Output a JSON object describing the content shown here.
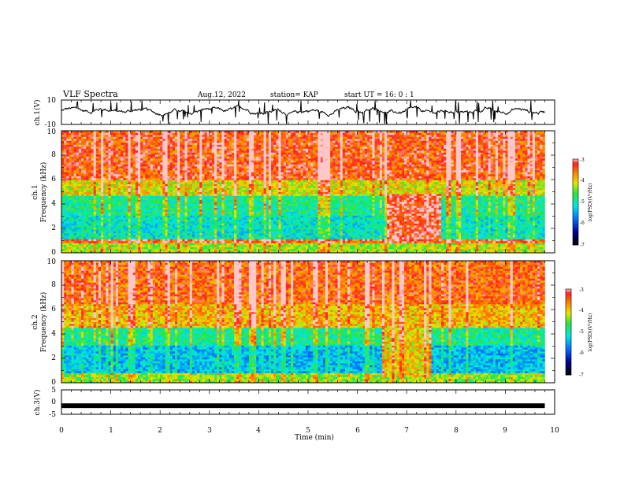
{
  "header": {
    "title": "VLF Spectra",
    "date": "Aug.12, 2022",
    "station": "station= KAP",
    "start_ut": "start  UT =  16: 0  : 1"
  },
  "chart_data": [
    {
      "type": "line",
      "id": "ch1-waveform",
      "ylabel": "ch.1(V)",
      "ylim": [
        -10,
        10
      ],
      "yticks": [
        "10",
        "-10"
      ],
      "xlim": [
        0,
        10
      ],
      "x_end": 9.8,
      "approx_range": [
        -4,
        6
      ]
    },
    {
      "type": "heatmap",
      "id": "ch1-spectrogram",
      "ylabel_line1": "ch.1",
      "ylabel_line2": "Frequency  (kHz)",
      "ylim": [
        0,
        10
      ],
      "yticks": [
        "0",
        "2",
        "4",
        "6",
        "8",
        "10"
      ],
      "xlim": [
        0,
        10
      ],
      "x_end": 9.8,
      "levels": [
        {
          "f_from": 0.0,
          "f_to": 0.8,
          "log_psd": -4.3
        },
        {
          "f_from": 0.8,
          "f_to": 1.2,
          "log_psd": -3.4
        },
        {
          "f_from": 1.2,
          "f_to": 3.0,
          "log_psd": -5.1
        },
        {
          "f_from": 3.0,
          "f_to": 4.6,
          "log_psd": -4.9
        },
        {
          "f_from": 4.6,
          "f_to": 6.0,
          "log_psd": -4.1
        },
        {
          "f_from": 6.0,
          "f_to": 10.0,
          "log_psd": -3.4
        }
      ],
      "features": [
        {
          "t_from": 6.6,
          "t_to": 7.7,
          "f_from": 1.0,
          "f_to": 4.8,
          "log_psd": -3.2
        }
      ],
      "colorbar": {
        "min": -7,
        "max": -3,
        "ticks": [
          "-3",
          "-4",
          "-5",
          "-6",
          "-7"
        ],
        "label": "log(PSD)(V²/Hz)"
      }
    },
    {
      "type": "heatmap",
      "id": "ch2-spectrogram",
      "ylabel_line1": "ch.2",
      "ylabel_line2": "Frequency  (kHz)",
      "ylim": [
        0,
        10
      ],
      "yticks": [
        "0",
        "2",
        "4",
        "6",
        "8",
        "10"
      ],
      "xlim": [
        0,
        10
      ],
      "x_end": 9.8,
      "levels": [
        {
          "f_from": 0.0,
          "f_to": 0.8,
          "log_psd": -4.4
        },
        {
          "f_from": 0.8,
          "f_to": 3.0,
          "log_psd": -5.4
        },
        {
          "f_from": 3.0,
          "f_to": 4.5,
          "log_psd": -4.9
        },
        {
          "f_from": 4.5,
          "f_to": 6.5,
          "log_psd": -3.9
        },
        {
          "f_from": 6.5,
          "f_to": 10.0,
          "log_psd": -3.5
        }
      ],
      "features": [
        {
          "t_from": 6.5,
          "t_to": 7.5,
          "f_from": 0.5,
          "f_to": 4.5,
          "log_psd": -4.0
        }
      ],
      "colorbar": {
        "min": -7,
        "max": -3,
        "ticks": [
          "-3",
          "-4",
          "-5",
          "-6",
          "-7"
        ],
        "label": "log(PSD)(V²/Hz)"
      }
    },
    {
      "type": "line",
      "id": "ch3-waveform",
      "ylabel": "ch.3(V)",
      "ylim": [
        -5,
        5
      ],
      "yticks": [
        "5",
        "0",
        "-5"
      ],
      "xlim": [
        0,
        10
      ],
      "x_end": 9.8,
      "level": -1.5
    }
  ],
  "xaxis": {
    "label": "Time  (min)",
    "ticks": [
      "0",
      "1",
      "2",
      "3",
      "4",
      "5",
      "6",
      "7",
      "8",
      "9",
      "10"
    ]
  }
}
